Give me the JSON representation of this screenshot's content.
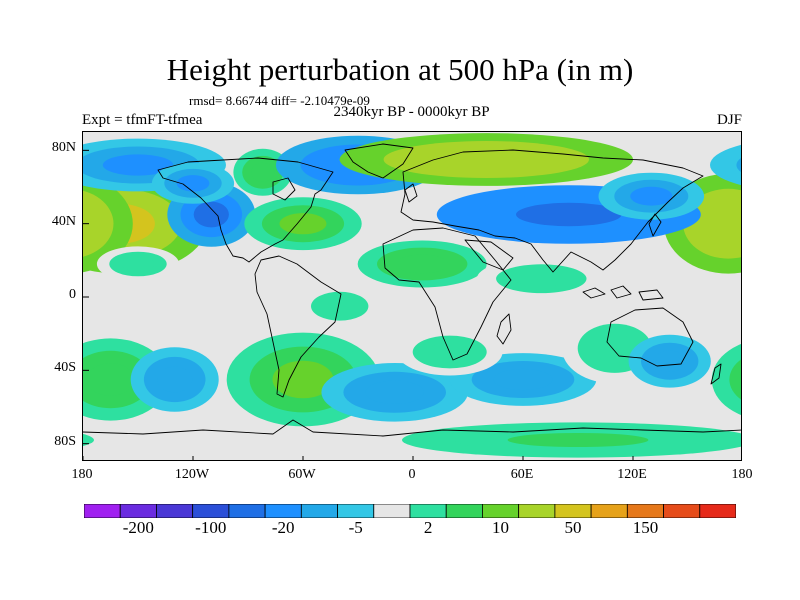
{
  "header": {
    "title": "Height perturbation at 500 hPa (in m)",
    "stats": "rmsd= 8.66744 diff= -2.10479e-09",
    "subtitle": "2340kyr BP - 0000kyr BP",
    "left_label": "Expt = tfmFT-tfmea",
    "right_label": "DJF"
  },
  "chart_data": {
    "type": "heatmap",
    "title": "Height perturbation at 500 hPa (in m)",
    "subtitle": "2340kyr BP - 0000kyr BP",
    "x_ticks": [
      "180",
      "120W",
      "60W",
      "0",
      "60E",
      "120E",
      "180"
    ],
    "x_tick_values": [
      -180,
      -120,
      -60,
      0,
      60,
      120,
      180
    ],
    "y_ticks": [
      "80N",
      "40N",
      "0",
      "40S",
      "80S"
    ],
    "y_tick_values": [
      80,
      40,
      0,
      -40,
      -80
    ],
    "xlim": [
      -180,
      180
    ],
    "ylim": [
      -90,
      90
    ],
    "colorbar": {
      "levels": [
        "-200",
        "-100",
        "-20",
        "-5",
        "2",
        "10",
        "50",
        "150"
      ],
      "colors": [
        "#a020f0",
        "#6a2be0",
        "#4a38d6",
        "#2b4fd8",
        "#1f6fe5",
        "#1e90ff",
        "#23a8e8",
        "#33c7e6",
        "#e6e6e6",
        "#2ee0a0",
        "#33d45c",
        "#66d22c",
        "#a8d42a",
        "#d4c41e",
        "#e6a21a",
        "#e6781a",
        "#e64c1a",
        "#e62a1a"
      ]
    },
    "anomalies": [
      {
        "lon": -160,
        "lat": 40,
        "value": 52,
        "spread_lon": 30,
        "spread_lat": 17
      },
      {
        "lon": 172,
        "lat": 40,
        "value": 48,
        "spread_lon": 22,
        "spread_lat": 17
      },
      {
        "lon": -150,
        "lat": 72,
        "value": -14,
        "spread_lon": 30,
        "spread_lat": 9
      },
      {
        "lon": -110,
        "lat": 45,
        "value": -22,
        "spread_lon": 15,
        "spread_lat": 11
      },
      {
        "lon": -120,
        "lat": 62,
        "value": -12,
        "spread_lon": 14,
        "spread_lat": 7
      },
      {
        "lon": -82,
        "lat": 68,
        "value": 9,
        "spread_lon": 10,
        "spread_lat": 8
      },
      {
        "lon": -60,
        "lat": 40,
        "value": 14,
        "spread_lon": 20,
        "spread_lat": 9
      },
      {
        "lon": -30,
        "lat": 72,
        "value": -20,
        "spread_lon": 28,
        "spread_lat": 10
      },
      {
        "lon": 40,
        "lat": 75,
        "value": 40,
        "spread_lon": 50,
        "spread_lat": 9
      },
      {
        "lon": 85,
        "lat": 45,
        "value": -30,
        "spread_lon": 45,
        "spread_lat": 10
      },
      {
        "lon": 5,
        "lat": 18,
        "value": 10,
        "spread_lon": 22,
        "spread_lat": 8
      },
      {
        "lon": 130,
        "lat": 55,
        "value": -12,
        "spread_lon": 18,
        "spread_lat": 8
      },
      {
        "lon": 70,
        "lat": 10,
        "value": 5,
        "spread_lon": 22,
        "spread_lat": 7
      },
      {
        "lon": -150,
        "lat": 18,
        "value": 4,
        "spread_lon": 14,
        "spread_lat": 6
      },
      {
        "lon": -165,
        "lat": -45,
        "value": 10,
        "spread_lon": 20,
        "spread_lat": 14
      },
      {
        "lon": -130,
        "lat": -45,
        "value": -10,
        "spread_lon": 15,
        "spread_lat": 11
      },
      {
        "lon": -60,
        "lat": -45,
        "value": 12,
        "spread_lon": 26,
        "spread_lat": 16
      },
      {
        "lon": -10,
        "lat": -52,
        "value": -10,
        "spread_lon": 25,
        "spread_lat": 10
      },
      {
        "lon": 60,
        "lat": -45,
        "value": -8,
        "spread_lon": 25,
        "spread_lat": 9
      },
      {
        "lon": 20,
        "lat": -30,
        "value": 5,
        "spread_lon": 18,
        "spread_lat": 8
      },
      {
        "lon": 110,
        "lat": -28,
        "value": 5,
        "spread_lon": 18,
        "spread_lat": 12
      },
      {
        "lon": 140,
        "lat": -35,
        "value": -9,
        "spread_lon": 14,
        "spread_lat": 9
      },
      {
        "lon": 90,
        "lat": -78,
        "value": 6,
        "spread_lon": 60,
        "spread_lat": 6
      },
      {
        "lon": -40,
        "lat": -5,
        "value": 4,
        "spread_lon": 14,
        "spread_lat": 7
      }
    ]
  }
}
